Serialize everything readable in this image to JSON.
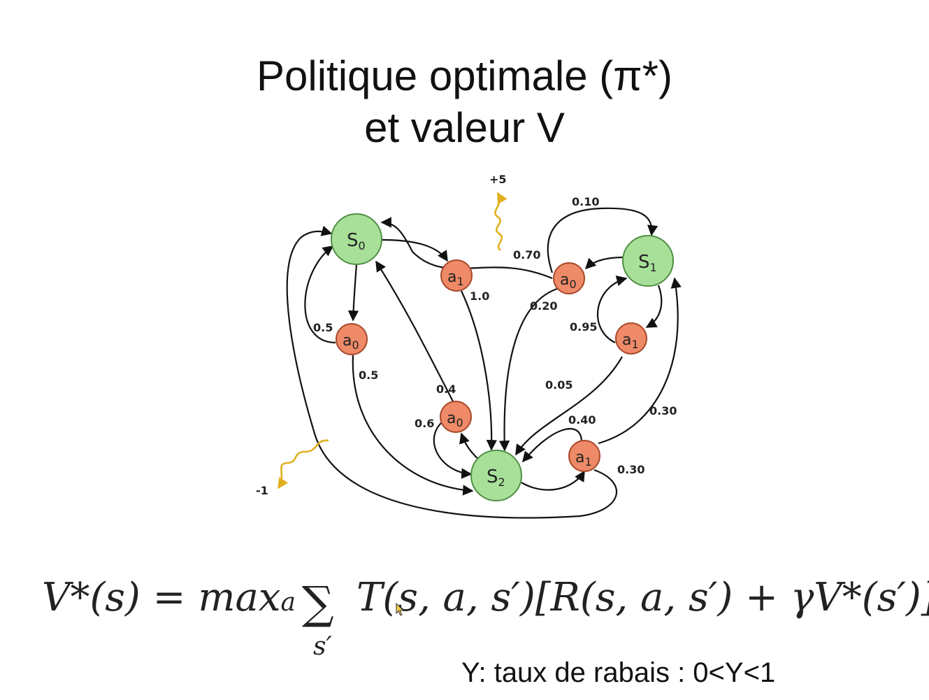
{
  "title": {
    "line1": "Politique optimale (π*)",
    "line2": "et valeur V"
  },
  "diagram": {
    "states": [
      {
        "id": "s0",
        "letter": "S",
        "sub": "0"
      },
      {
        "id": "s1",
        "letter": "S",
        "sub": "1"
      },
      {
        "id": "s2",
        "letter": "S",
        "sub": "2"
      }
    ],
    "actions": [
      {
        "id": "s0a0",
        "letter": "a",
        "sub": "0"
      },
      {
        "id": "s0a1",
        "letter": "a",
        "sub": "1"
      },
      {
        "id": "s1a0",
        "letter": "a",
        "sub": "0"
      },
      {
        "id": "s1a1",
        "letter": "a",
        "sub": "1"
      },
      {
        "id": "s2a0",
        "letter": "a",
        "sub": "0"
      },
      {
        "id": "s2a1",
        "letter": "a",
        "sub": "1"
      }
    ],
    "edge_labels": {
      "s0a0_s0": "0.5",
      "s0a0_s2": "0.5",
      "s0a1_s2": "1.0",
      "s1a0_s0": "0.70",
      "s1a0_s1": "0.10",
      "s1a0_s2": "0.20",
      "s1a1_s1": "0.95",
      "s1a1_s2": "0.05",
      "s2a0_s0": "0.4",
      "s2a0_s2": "0.6",
      "s2a1_s2": "0.40",
      "s2a1_s1": "0.30",
      "s2a1_s0": "0.30"
    },
    "rewards": {
      "positive": "+5",
      "negative": "-1"
    },
    "colors": {
      "state_fill": "#a8e09a",
      "state_stroke": "#4f8f44",
      "action_fill": "#ef8a68",
      "action_stroke": "#a84a2c",
      "reward_arrow": "#e0b020"
    }
  },
  "formula": {
    "lhs": "V*(s) = max",
    "lhs_sub": "a",
    "sum": "∑",
    "sum_sub": "s′",
    "rhs": "T(s, a, s′)[R(s, a, s′) + γV*(s′)]"
  },
  "note": "Y: taux de rabais : 0<Y<1"
}
